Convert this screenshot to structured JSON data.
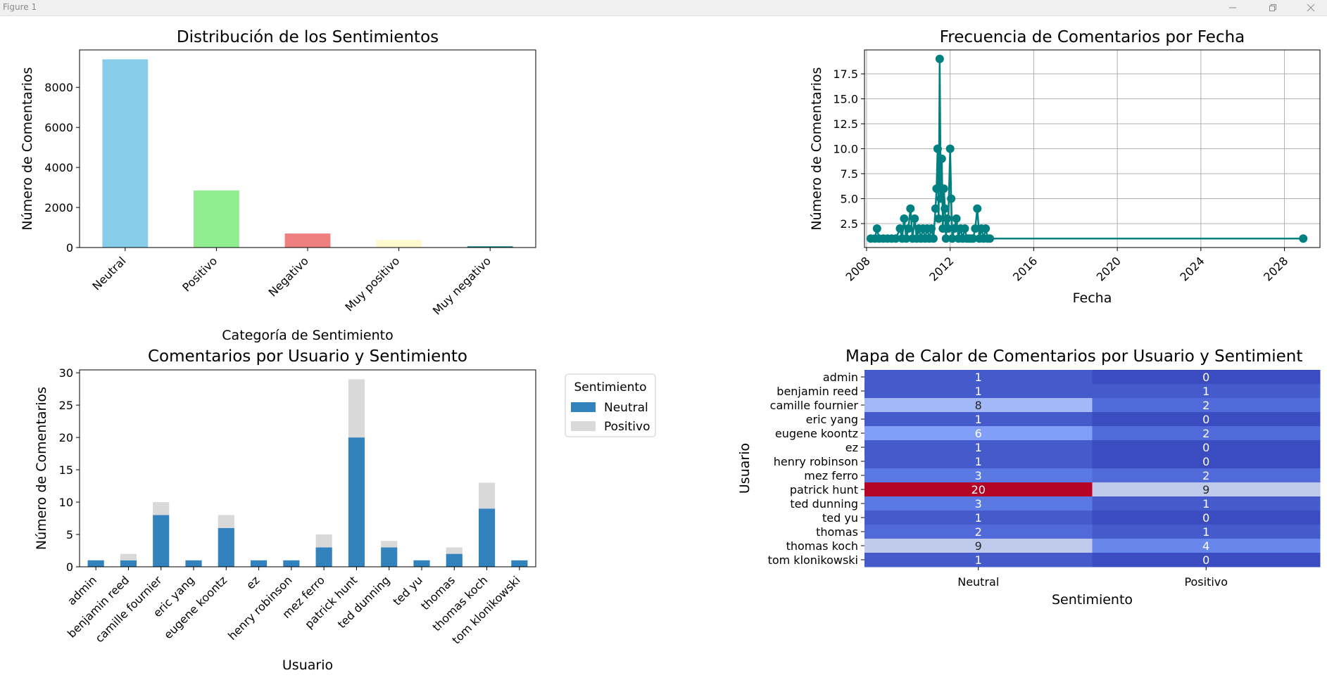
{
  "window": {
    "title": "Figure 1",
    "minimize_icon": "minimize-icon",
    "restore_icon": "restore-icon",
    "close_icon": "close-icon"
  },
  "chart_data": [
    {
      "type": "bar",
      "title": "Distribución de los Sentimientos",
      "xlabel": "Categoría de Sentimiento",
      "ylabel": "Número de Comentarios",
      "categories": [
        "Neutral",
        "Positivo",
        "Negativo",
        "Muy positivo",
        "Muy negativo"
      ],
      "values": [
        9400,
        2850,
        700,
        380,
        60
      ],
      "colors": [
        "#87ceeb",
        "#90ee90",
        "#f08080",
        "#fffacd",
        "#008080"
      ],
      "ylim": [
        0,
        9870
      ],
      "yticks": [
        0,
        2000,
        4000,
        6000,
        8000
      ],
      "ytick_labels": [
        "0",
        "2000",
        "4000",
        "6000",
        "8000"
      ],
      "grid": false
    },
    {
      "type": "line",
      "title": "Frecuencia de Comentarios por Fecha",
      "xlabel": "Fecha",
      "ylabel": "Número de Comentarios",
      "color": "#008080",
      "xlim": [
        2007.9,
        2029.7
      ],
      "ylim": [
        0.1,
        19.9
      ],
      "xticks": [
        2008,
        2012,
        2016,
        2020,
        2024,
        2028
      ],
      "xtick_labels": [
        "2008",
        "2012",
        "2016",
        "2020",
        "2024",
        "2028"
      ],
      "yticks": [
        2.5,
        5.0,
        7.5,
        10.0,
        12.5,
        15.0,
        17.5
      ],
      "ytick_labels": [
        "2.5",
        "5.0",
        "7.5",
        "10.0",
        "12.5",
        "15.0",
        "17.5"
      ],
      "grid": true,
      "x": [
        2008.2,
        2008.4,
        2008.5,
        2008.6,
        2008.8,
        2009.0,
        2009.2,
        2009.4,
        2009.6,
        2009.7,
        2009.8,
        2009.9,
        2010.0,
        2010.1,
        2010.2,
        2010.3,
        2010.4,
        2010.5,
        2010.6,
        2010.7,
        2010.8,
        2010.9,
        2011.0,
        2011.1,
        2011.2,
        2011.3,
        2011.35,
        2011.4,
        2011.45,
        2011.5,
        2011.55,
        2011.6,
        2011.65,
        2011.7,
        2011.75,
        2011.8,
        2011.85,
        2011.9,
        2012.0,
        2012.05,
        2012.1,
        2012.2,
        2012.3,
        2012.4,
        2012.5,
        2012.6,
        2012.7,
        2012.8,
        2012.9,
        2013.0,
        2013.1,
        2013.2,
        2013.3,
        2013.4,
        2013.5,
        2013.6,
        2013.7,
        2013.8,
        2013.9,
        2028.9
      ],
      "y": [
        1,
        1,
        2,
        1,
        1,
        1,
        1,
        1,
        2,
        1,
        3,
        1,
        2,
        4,
        1,
        3,
        1,
        2,
        1,
        2,
        1,
        2,
        1,
        2,
        1,
        4,
        6,
        10,
        3,
        19,
        5,
        9,
        2,
        6,
        4,
        1,
        3,
        2,
        10,
        5,
        1,
        2,
        3,
        1,
        2,
        1,
        2,
        1,
        1,
        1,
        1,
        2,
        4,
        1,
        2,
        1,
        2,
        1,
        1,
        1
      ]
    },
    {
      "type": "bar",
      "stacked": true,
      "title": "Comentarios por Usuario y Sentimiento",
      "xlabel": "Usuario",
      "ylabel": "Número de Comentarios",
      "categories": [
        "admin",
        "benjamin reed",
        "camille fournier",
        "eric yang",
        "eugene koontz",
        "ez",
        "henry robinson",
        "mez ferro",
        "patrick hunt",
        "ted dunning",
        "ted yu",
        "thomas",
        "thomas koch",
        "tom klonikowski"
      ],
      "series": [
        {
          "name": "Neutral",
          "color": "#3182bd",
          "values": [
            1,
            1,
            8,
            1,
            6,
            1,
            1,
            3,
            20,
            3,
            1,
            2,
            9,
            1
          ]
        },
        {
          "name": "Positivo",
          "color": "#d9d9d9",
          "values": [
            0,
            1,
            2,
            0,
            2,
            0,
            0,
            2,
            9,
            1,
            0,
            1,
            4,
            0
          ]
        }
      ],
      "legend": {
        "title": "Sentimiento",
        "placement": "outside-right"
      },
      "ylim": [
        0,
        30.45
      ],
      "yticks": [
        0,
        5,
        10,
        15,
        20,
        25,
        30
      ],
      "ytick_labels": [
        "0",
        "5",
        "10",
        "15",
        "20",
        "25",
        "30"
      ],
      "grid": false
    },
    {
      "type": "heatmap",
      "title": "Mapa de Calor de Comentarios por Usuario y Sentimient",
      "xlabel": "Sentimiento",
      "ylabel": "Usuario",
      "colormap": "coolwarm",
      "columns": [
        "Neutral",
        "Positivo"
      ],
      "rows": [
        "admin",
        "benjamin reed",
        "camille fournier",
        "eric yang",
        "eugene koontz",
        "ez",
        "henry robinson",
        "mez ferro",
        "patrick hunt",
        "ted dunning",
        "ted yu",
        "thomas",
        "thomas koch",
        "tom klonikowski"
      ],
      "values": [
        [
          1,
          0
        ],
        [
          1,
          1
        ],
        [
          8,
          2
        ],
        [
          1,
          0
        ],
        [
          6,
          2
        ],
        [
          1,
          0
        ],
        [
          1,
          0
        ],
        [
          3,
          2
        ],
        [
          20,
          9
        ],
        [
          3,
          1
        ],
        [
          1,
          0
        ],
        [
          2,
          1
        ],
        [
          9,
          4
        ],
        [
          1,
          0
        ]
      ],
      "vmin": 0,
      "vmax": 20,
      "annotated": true
    }
  ]
}
